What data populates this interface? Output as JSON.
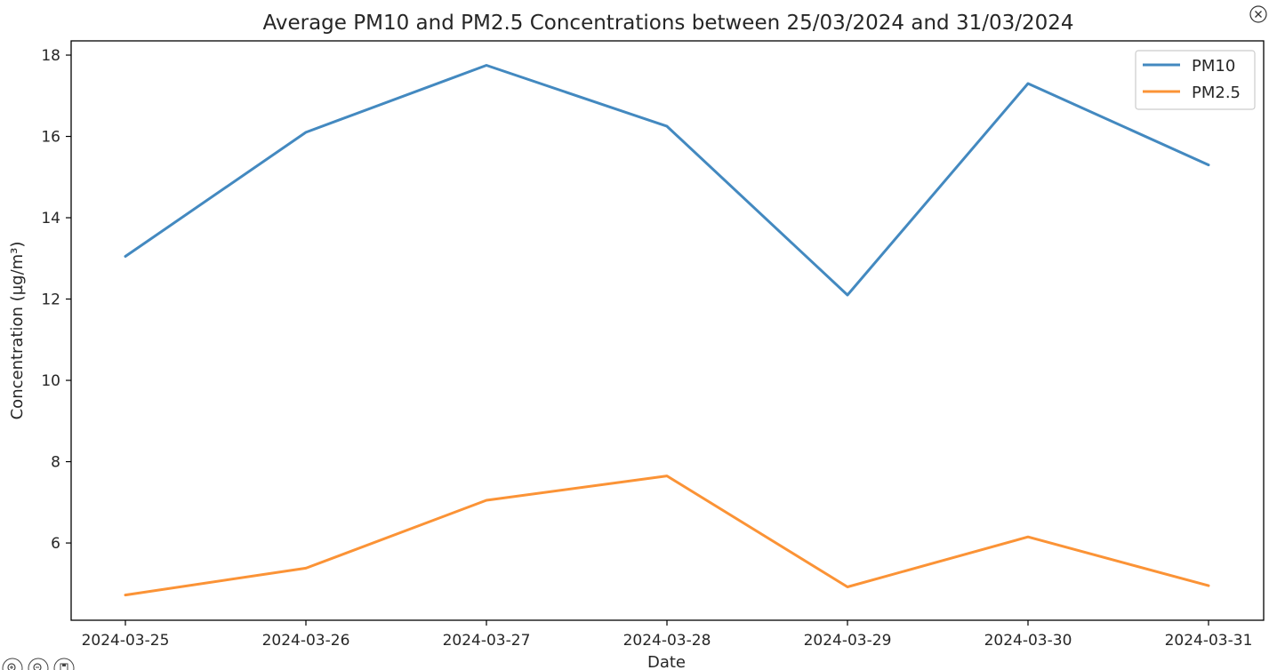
{
  "chart_data": {
    "type": "line",
    "title": "Average PM10 and PM2.5 Concentrations between 25/03/2024 and 31/03/2024",
    "xlabel": "Date",
    "ylabel": "Concentration (µg/m³)",
    "categories": [
      "2024-03-25",
      "2024-03-26",
      "2024-03-27",
      "2024-03-28",
      "2024-03-29",
      "2024-03-30",
      "2024-03-31"
    ],
    "series": [
      {
        "name": "PM10",
        "color": "#4389c0",
        "values": [
          13.05,
          16.1,
          17.75,
          16.25,
          12.1,
          17.3,
          15.3
        ]
      },
      {
        "name": "PM2.5",
        "color": "#fb9336",
        "values": [
          4.72,
          5.38,
          7.05,
          7.65,
          4.92,
          6.15,
          4.95
        ]
      }
    ],
    "ylim": [
      4.1,
      18.35
    ],
    "yticks": [
      6,
      8,
      10,
      12,
      14,
      16,
      18
    ],
    "legend": "upper-right",
    "grid": false
  },
  "controls": {
    "close_icon": "close-icon",
    "toolbar_icons": [
      "zoom-in-icon",
      "zoom-out-icon",
      "save-icon"
    ]
  }
}
